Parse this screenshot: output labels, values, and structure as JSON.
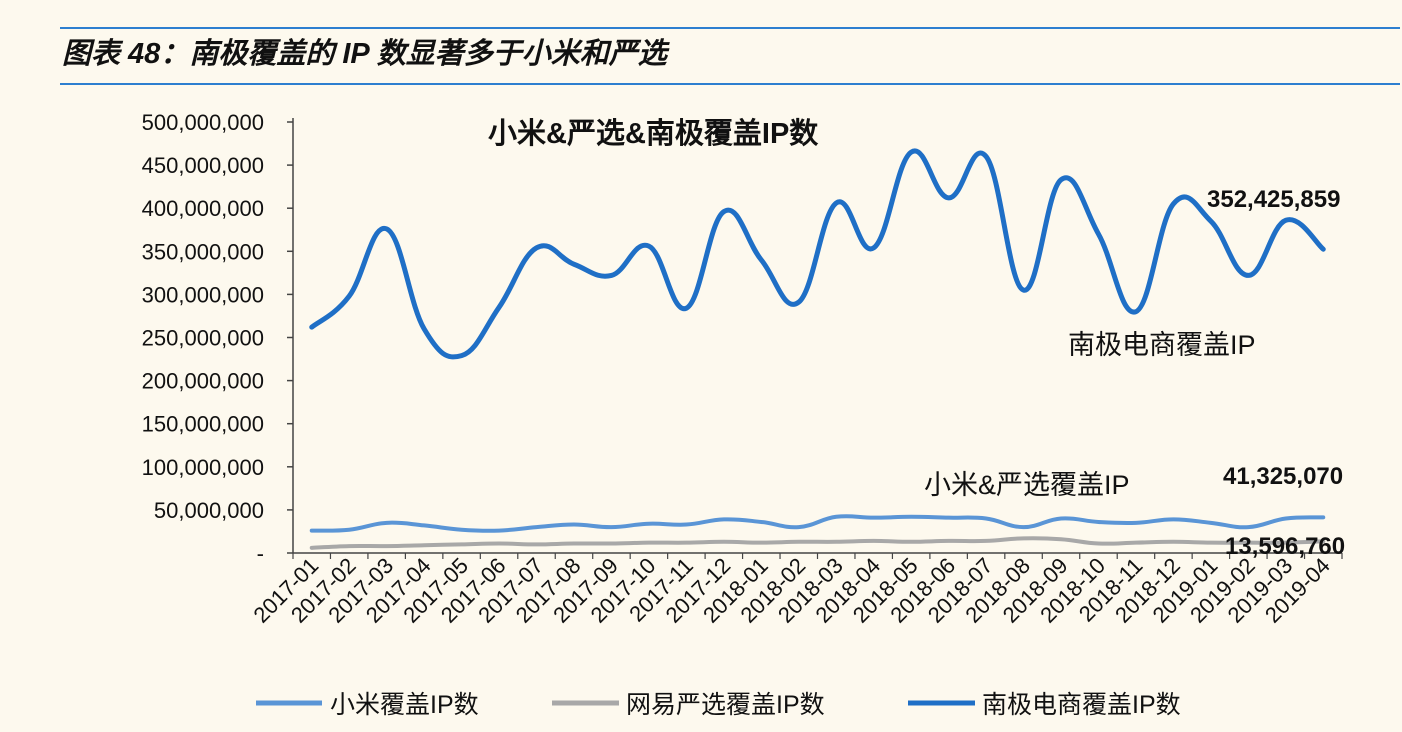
{
  "figure_title": "图表 48：南极覆盖的 IP 数显著多于小米和严选",
  "chart_data": {
    "type": "line",
    "title": "小米&严选&南极覆盖IP数",
    "xlabel": "",
    "ylabel": "",
    "ylim": [
      0,
      500000000
    ],
    "yticks": [
      0,
      50000000,
      100000000,
      150000000,
      200000000,
      250000000,
      300000000,
      350000000,
      400000000,
      450000000,
      500000000
    ],
    "ytick_labels": [
      "-",
      "50,000,000",
      "100,000,000",
      "150,000,000",
      "200,000,000",
      "250,000,000",
      "300,000,000",
      "350,000,000",
      "400,000,000",
      "450,000,000",
      "500,000,000"
    ],
    "grid": false,
    "legend_position": "bottom",
    "categories": [
      "2017-01",
      "2017-02",
      "2017-03",
      "2017-04",
      "2017-05",
      "2017-06",
      "2017-07",
      "2017-08",
      "2017-09",
      "2017-10",
      "2017-11",
      "2017-12",
      "2018-01",
      "2018-02",
      "2018-03",
      "2018-04",
      "2018-05",
      "2018-06",
      "2018-07",
      "2018-08",
      "2018-09",
      "2018-10",
      "2018-11",
      "2018-12",
      "2019-01",
      "2019-02",
      "2019-03",
      "2019-04"
    ],
    "series": [
      {
        "name": "小米覆盖IP数",
        "color": "#5a95d6",
        "values": [
          26000000,
          27000000,
          35000000,
          32000000,
          27000000,
          26000000,
          30000000,
          33000000,
          30000000,
          34000000,
          33000000,
          39000000,
          36000000,
          30000000,
          42000000,
          41000000,
          42000000,
          41000000,
          40000000,
          30000000,
          40000000,
          36000000,
          35000000,
          39000000,
          35000000,
          30000000,
          40000000,
          41325070
        ]
      },
      {
        "name": "网易严选覆盖IP数",
        "color": "#a8a8a8",
        "values": [
          6000000,
          8000000,
          8000000,
          9000000,
          10000000,
          11000000,
          10000000,
          11000000,
          11000000,
          12000000,
          12000000,
          13000000,
          12000000,
          13000000,
          13000000,
          14000000,
          13000000,
          14000000,
          14000000,
          17000000,
          16000000,
          11000000,
          12000000,
          13000000,
          12000000,
          12000000,
          12000000,
          13596760
        ]
      },
      {
        "name": "南极电商覆盖IP",
        "color": "#1f6fc6",
        "values": [
          262000000,
          298000000,
          376000000,
          260000000,
          229000000,
          285000000,
          354000000,
          335000000,
          322000000,
          356000000,
          284000000,
          396000000,
          340000000,
          291000000,
          406000000,
          354000000,
          465000000,
          412000000,
          460000000,
          305000000,
          433000000,
          370000000,
          280000000,
          405000000,
          385000000,
          322000000,
          386000000,
          352425859
        ]
      }
    ],
    "legend_labels": [
      "小米覆盖IP数",
      "网易严选覆盖IP数",
      "南极电商覆盖IP数"
    ],
    "annotations": {
      "nanji_label": "南极电商覆盖IP",
      "nanji_last": "352,425,859",
      "xm_yx_label": "小米&严选覆盖IP",
      "xm_last": "41,325,070",
      "yx_last": "13,596,760"
    }
  }
}
